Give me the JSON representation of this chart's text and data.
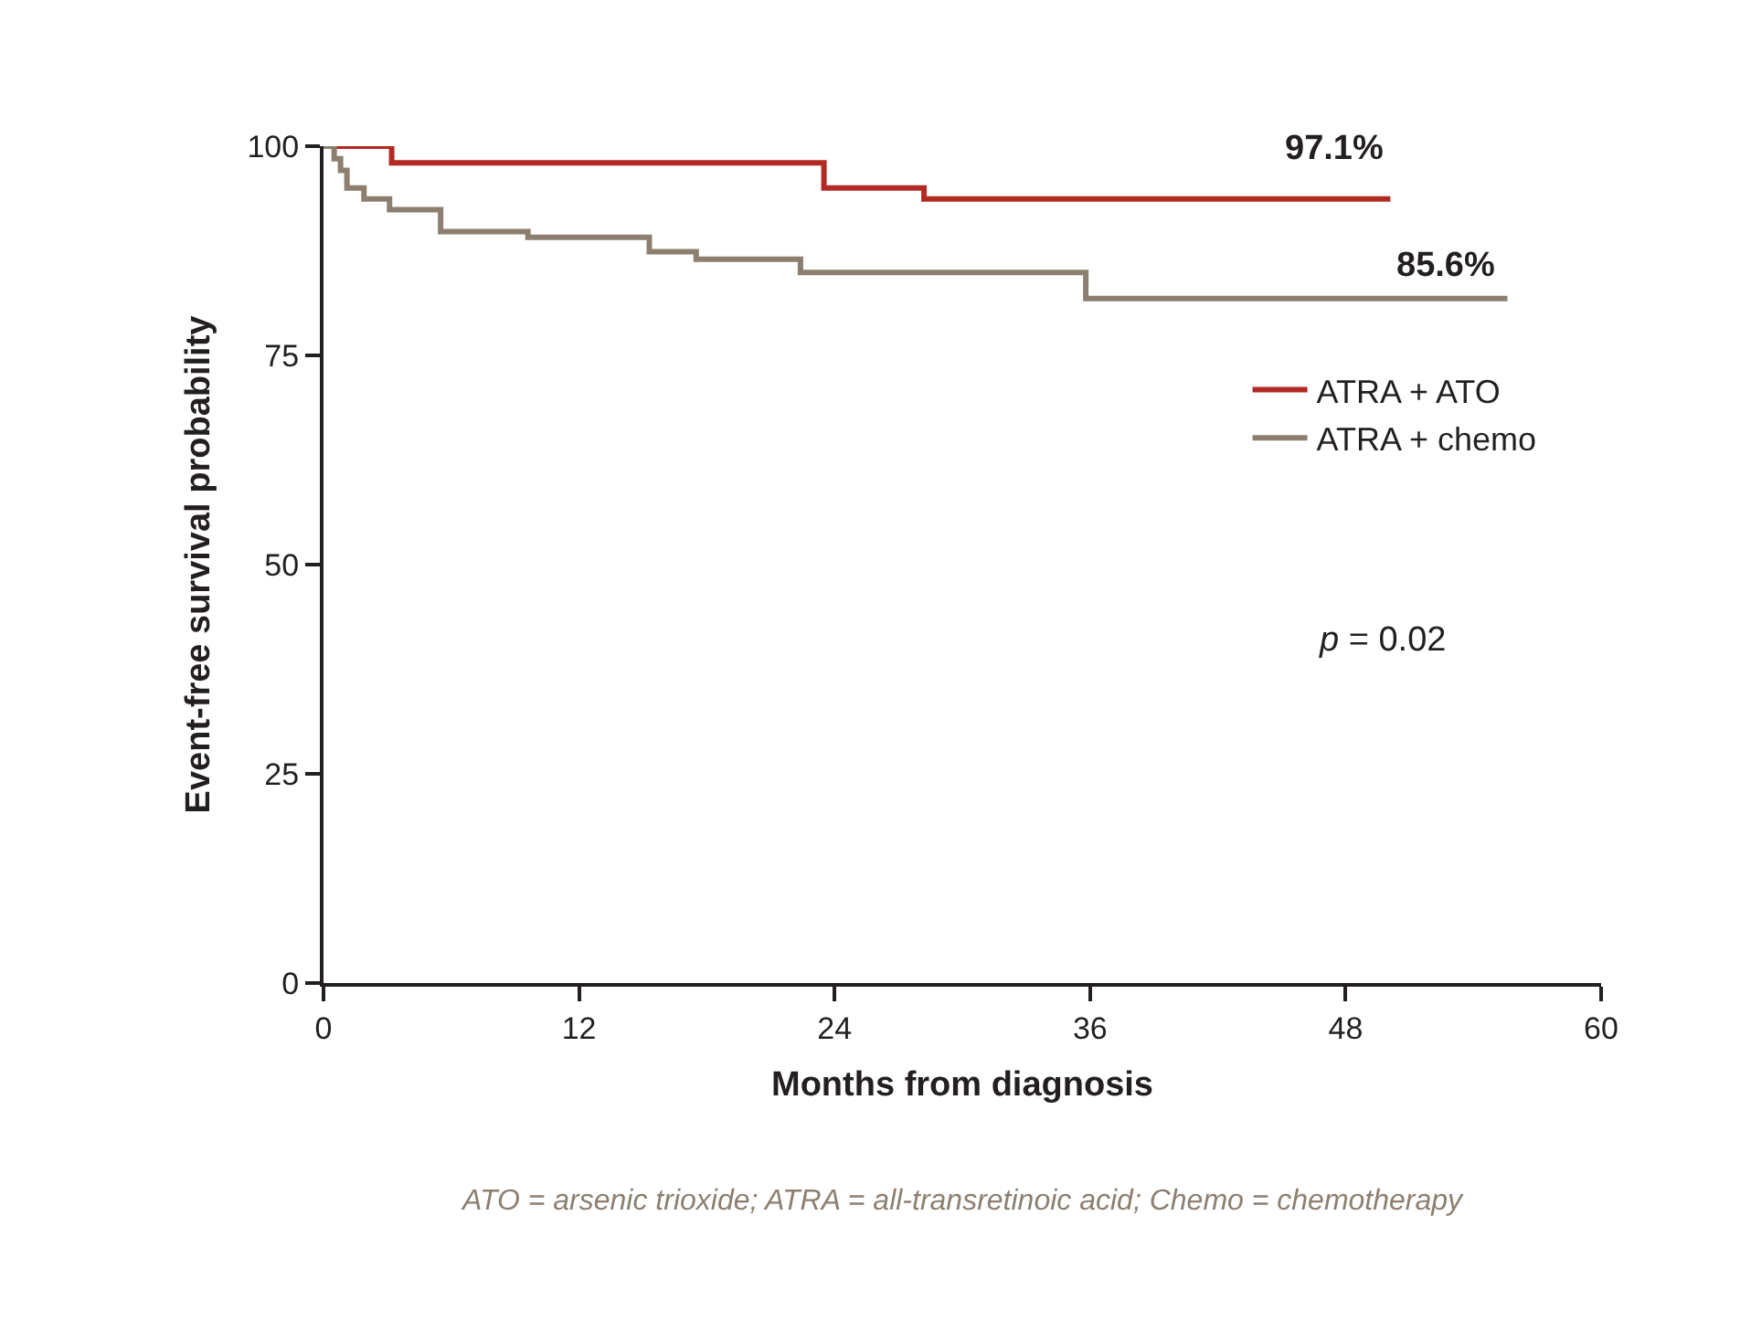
{
  "chart_data": {
    "type": "step",
    "xlabel": "Months from diagnosis",
    "ylabel": "Event-free survival probability",
    "xlim": [
      0,
      60
    ],
    "xticks": [
      0,
      12,
      24,
      36,
      48,
      60
    ],
    "ylim": [
      0,
      100
    ],
    "yticks": [
      0,
      25,
      50,
      75,
      100
    ],
    "legend": "right",
    "series": [
      {
        "name": "ATRA + ATO",
        "color": "#b22a24",
        "x": [
          0,
          3.2,
          23.5,
          28.2,
          50.1
        ],
        "values": [
          100,
          98.0,
          95.0,
          93.7,
          93.7
        ]
      },
      {
        "name": "ATRA + chemo",
        "color": "#8c7f70",
        "x": [
          0,
          0.5,
          0.8,
          1.1,
          1.9,
          3.1,
          5.5,
          9.6,
          15.3,
          17.5,
          22.4,
          35.8,
          55.6
        ],
        "values": [
          100,
          98.5,
          97.1,
          95.0,
          93.7,
          92.4,
          89.8,
          89.1,
          87.4,
          86.5,
          84.9,
          81.8,
          81.8
        ]
      }
    ],
    "annotations": [
      "97.1%",
      "85.6%",
      "p = 0.02",
      "ATO = arsenic trioxide; ATRA = all-transretinoic acid; Chemo = chemotherapy"
    ]
  }
}
